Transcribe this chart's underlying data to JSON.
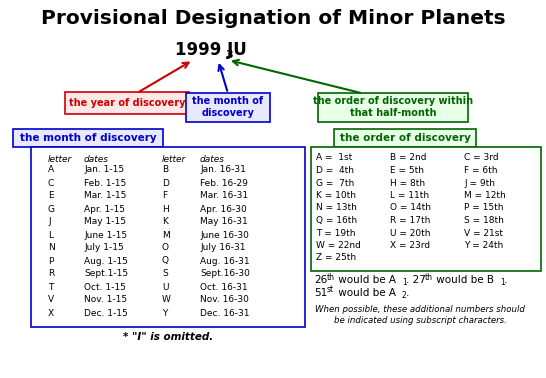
{
  "title": "Provisional Designation of Minor Planets",
  "designation_main": "1999 JU",
  "designation_sub": "3",
  "box_red_text": "the year of discovery",
  "box_blue_text": "the month of\ndiscovery",
  "box_green_text": "the order of discovery within\nthat half-month",
  "label_month": "the month of discovery",
  "label_order": "the order of discovery",
  "month_table_header": [
    "letter",
    "dates",
    "letter",
    "dates"
  ],
  "month_table_rows": [
    [
      "A",
      "Jan. 1-15",
      "B",
      "Jan. 16-31"
    ],
    [
      "C",
      "Feb. 1-15",
      "D",
      "Feb. 16-29"
    ],
    [
      "E",
      "Mar. 1-15",
      "F",
      "Mar. 16-31"
    ],
    [
      "G",
      "Apr. 1-15",
      "H",
      "Apr. 16-30"
    ],
    [
      "J",
      "May 1-15",
      "K",
      "May 16-31"
    ],
    [
      "L",
      "June 1-15",
      "M",
      "June 16-30"
    ],
    [
      "N",
      "July 1-15",
      "O",
      "July 16-31"
    ],
    [
      "P",
      "Aug. 1-15",
      "Q",
      "Aug. 16-31"
    ],
    [
      "R",
      "Sept.1-15",
      "S",
      "Sept.16-30"
    ],
    [
      "T",
      "Oct. 1-15",
      "U",
      "Oct. 16-31"
    ],
    [
      "V",
      "Nov. 1-15",
      "W",
      "Nov. 16-30"
    ],
    [
      "X",
      "Dec. 1-15",
      "Y",
      "Dec. 16-31"
    ]
  ],
  "month_footnote": "* \"I\" is omitted.",
  "order_table_rows": [
    [
      "A =  1st",
      "B = 2nd",
      "C = 3rd"
    ],
    [
      "D =  4th",
      "E = 5th",
      "F = 6th"
    ],
    [
      "G =  7th",
      "H = 8th",
      "J = 9th"
    ],
    [
      "K = 10th",
      "L = 11th",
      "M = 12th"
    ],
    [
      "N = 13th",
      "O = 14th",
      "P = 15th"
    ],
    [
      "Q = 16th",
      "R = 17th",
      "S = 18th"
    ],
    [
      "T = 19th",
      "U = 20th",
      "V = 21st"
    ],
    [
      "W = 22nd",
      "X = 23rd",
      "Y = 24th"
    ],
    [
      "Z = 25th",
      "",
      ""
    ]
  ],
  "footnote2": "When possible, these additional numbers should\nbe indicated using subscript characters.",
  "color_red": "#cc0000",
  "color_blue": "#0000cc",
  "color_green": "#006600",
  "color_red_bg": "#ffe8e8",
  "color_blue_bg": "#e8e8ff",
  "color_green_bg": "#e8ffe8",
  "bg": "#ffffff"
}
